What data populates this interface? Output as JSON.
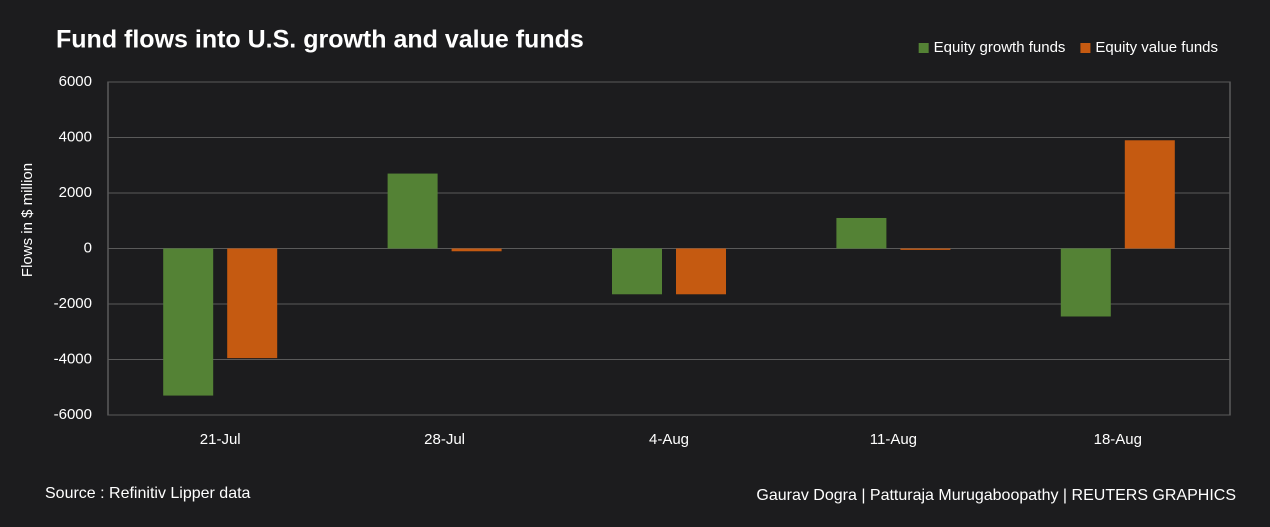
{
  "chart_data": {
    "type": "bar",
    "title": "Fund flows into U.S. growth and value funds",
    "y_label": "Flows in $ million",
    "categories": [
      "21-Jul",
      "28-Jul",
      "4-Aug",
      "11-Aug",
      "18-Aug"
    ],
    "series": [
      {
        "name": "Equity growth funds",
        "color": "#548235",
        "values": [
          -5300,
          2700,
          -1650,
          1100,
          -2450
        ]
      },
      {
        "name": "Equity value funds",
        "color": "#c55a11",
        "values": [
          -3950,
          -100,
          -1650,
          -50,
          3900
        ]
      }
    ],
    "ylim": [
      -6000,
      6000
    ],
    "yticks": [
      -6000,
      -4000,
      -2000,
      0,
      2000,
      4000,
      6000
    ],
    "grid": true,
    "legend": "top-right",
    "source": "Source : Refinitiv Lipper data",
    "credit": "Gaurav Dogra | Patturaja Murugaboopathy | REUTERS GRAPHICS"
  }
}
